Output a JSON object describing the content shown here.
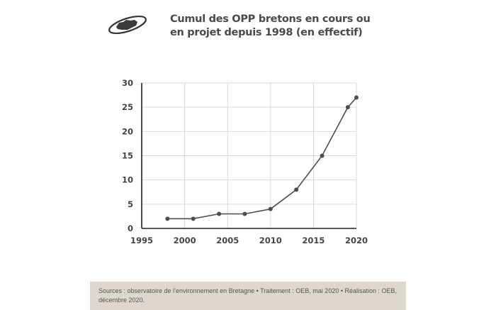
{
  "title": {
    "line1": "Cumul des OPP bretons en cours ou",
    "line2": "en projet depuis 1998 (en effectif)"
  },
  "footer": {
    "source": "Sources : observatoire de l’environnement en Bretagne • Traitement : OEB, mai 2020 • Réalisation : OEB, décembre 2020."
  },
  "logo": {
    "icon": "brittany-map-logo-icon"
  },
  "colors": {
    "line": "#4d4d4d",
    "grid": "#d9d9d9",
    "footer_bg": "#ddd7d0",
    "title": "#4a4a4a"
  },
  "chart_data": {
    "type": "line",
    "title": "Cumul des OPP bretons en cours ou en projet depuis 1998 (en effectif)",
    "x": [
      1998,
      2001,
      2004,
      2007,
      2010,
      2013,
      2016,
      2019,
      2020
    ],
    "values": [
      2,
      2,
      3,
      3,
      4,
      8,
      15,
      25,
      27
    ],
    "xlim": [
      1995,
      2020
    ],
    "ylim": [
      0,
      30
    ],
    "xticks": [
      1995,
      2000,
      2005,
      2010,
      2015,
      2020
    ],
    "yticks": [
      0,
      5,
      10,
      15,
      20,
      25,
      30
    ],
    "grid": true,
    "markers": true
  }
}
